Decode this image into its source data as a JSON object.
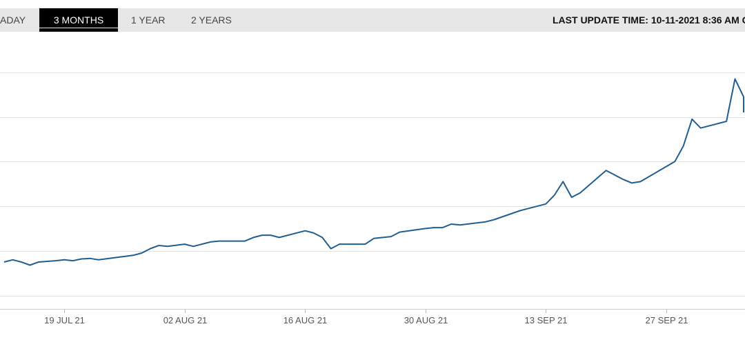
{
  "tabs": [
    {
      "label": "ADAY",
      "active": false
    },
    {
      "label": "3 MONTHS",
      "active": true
    },
    {
      "label": "1 YEAR",
      "active": false
    },
    {
      "label": "2 YEARS",
      "active": false
    }
  ],
  "last_update": "LAST UPDATE TIME: 10-11-2021 8:36 AM G",
  "colors": {
    "line": "#1f5e91",
    "grid": "#e3e3e3",
    "tab_bar": "#e7e7e7",
    "active_tab": "#000000"
  },
  "chart_data": {
    "type": "line",
    "title": "",
    "xlabel": "",
    "ylabel": "",
    "grid": "horizontal",
    "x_ticks": [
      {
        "label": "19 JUL 21",
        "date": "2021-07-19"
      },
      {
        "label": "02 AUG 21",
        "date": "2021-08-02"
      },
      {
        "label": "16 AUG 21",
        "date": "2021-08-16"
      },
      {
        "label": "30 AUG 21",
        "date": "2021-08-30"
      },
      {
        "label": "13 SEP 21",
        "date": "2021-09-13"
      },
      {
        "label": "27 SEP 21",
        "date": "2021-09-27"
      }
    ],
    "xlim": [
      "2021-07-12",
      "2021-10-06"
    ],
    "ylim": [
      -0.3,
      6.0
    ],
    "y_gridlines": [
      0,
      1,
      2,
      3,
      4,
      5,
      6
    ],
    "series": [
      {
        "points": [
          [
            "2021-07-12",
            0.75
          ],
          [
            "2021-07-13",
            0.8
          ],
          [
            "2021-07-14",
            0.75
          ],
          [
            "2021-07-15",
            0.68
          ],
          [
            "2021-07-16",
            0.75
          ],
          [
            "2021-07-18",
            0.78
          ],
          [
            "2021-07-19",
            0.8
          ],
          [
            "2021-07-20",
            0.78
          ],
          [
            "2021-07-21",
            0.82
          ],
          [
            "2021-07-22",
            0.83
          ],
          [
            "2021-07-23",
            0.8
          ],
          [
            "2021-07-25",
            0.85
          ],
          [
            "2021-07-27",
            0.9
          ],
          [
            "2021-07-28",
            0.95
          ],
          [
            "2021-07-29",
            1.05
          ],
          [
            "2021-07-30",
            1.12
          ],
          [
            "2021-07-31",
            1.1
          ],
          [
            "2021-08-02",
            1.15
          ],
          [
            "2021-08-03",
            1.1
          ],
          [
            "2021-08-05",
            1.2
          ],
          [
            "2021-08-06",
            1.22
          ],
          [
            "2021-08-09",
            1.22
          ],
          [
            "2021-08-10",
            1.3
          ],
          [
            "2021-08-11",
            1.35
          ],
          [
            "2021-08-12",
            1.35
          ],
          [
            "2021-08-13",
            1.3
          ],
          [
            "2021-08-16",
            1.45
          ],
          [
            "2021-08-17",
            1.4
          ],
          [
            "2021-08-18",
            1.3
          ],
          [
            "2021-08-19",
            1.05
          ],
          [
            "2021-08-20",
            1.15
          ],
          [
            "2021-08-23",
            1.15
          ],
          [
            "2021-08-24",
            1.28
          ],
          [
            "2021-08-26",
            1.32
          ],
          [
            "2021-08-27",
            1.42
          ],
          [
            "2021-08-30",
            1.5
          ],
          [
            "2021-08-31",
            1.52
          ],
          [
            "2021-09-01",
            1.52
          ],
          [
            "2021-09-02",
            1.6
          ],
          [
            "2021-09-03",
            1.58
          ],
          [
            "2021-09-06",
            1.65
          ],
          [
            "2021-09-07",
            1.7
          ],
          [
            "2021-09-10",
            1.9
          ],
          [
            "2021-09-13",
            2.05
          ],
          [
            "2021-09-14",
            2.25
          ],
          [
            "2021-09-15",
            2.55
          ],
          [
            "2021-09-16",
            2.2
          ],
          [
            "2021-09-17",
            2.3
          ],
          [
            "2021-09-20",
            2.8
          ],
          [
            "2021-09-21",
            2.7
          ],
          [
            "2021-09-22",
            2.6
          ],
          [
            "2021-09-23",
            2.52
          ],
          [
            "2021-09-24",
            2.55
          ],
          [
            "2021-09-28",
            3.0
          ],
          [
            "2021-09-29",
            3.35
          ],
          [
            "2021-09-30",
            3.95
          ],
          [
            "2021-10-01",
            3.75
          ],
          [
            "2021-10-04",
            3.9
          ],
          [
            "2021-10-05",
            4.85
          ],
          [
            "2021-10-06",
            4.45
          ],
          [
            "2021-10-06",
            4.1
          ]
        ]
      }
    ]
  }
}
